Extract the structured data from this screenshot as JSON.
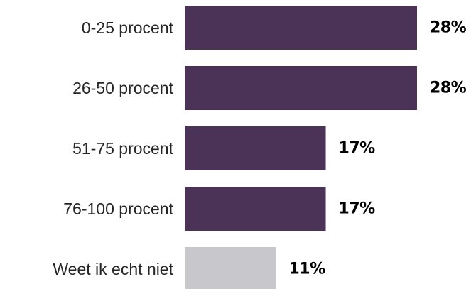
{
  "chart_data": {
    "type": "bar",
    "orientation": "horizontal",
    "categories": [
      "0-25 procent",
      "26-50 procent",
      "51-75 procent",
      "76-100 procent",
      "Weet ik echt niet"
    ],
    "values": [
      28,
      28,
      17,
      17,
      11
    ],
    "value_labels": [
      "28%",
      "28%",
      "17%",
      "17%",
      "11%"
    ],
    "unit": "%",
    "bar_colors": [
      "#4a3357",
      "#4a3357",
      "#4a3357",
      "#4a3357",
      "#c8c7cc"
    ],
    "grid": false,
    "legend": "none"
  }
}
